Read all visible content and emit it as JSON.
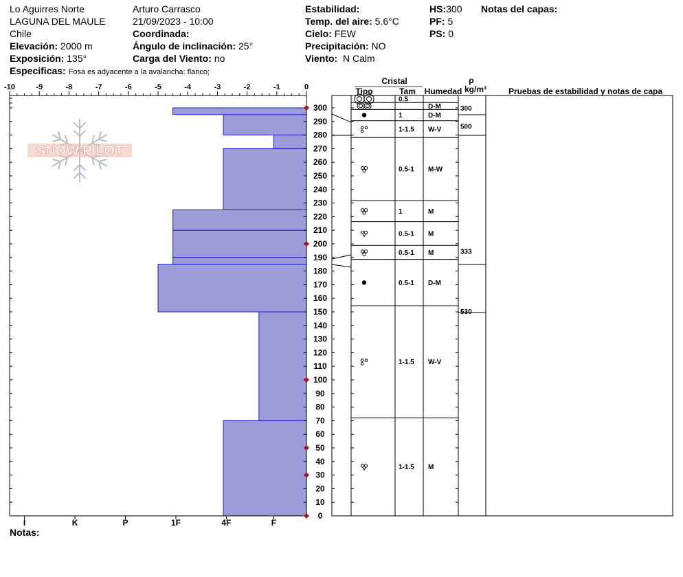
{
  "header": {
    "location": "Lo Aguirres Norte",
    "region": "LAGUNA DEL MAULE",
    "country": "Chile",
    "elevation_label": "Elevación:",
    "elevation_value": "2000 m",
    "aspect_label": "Exposición:",
    "aspect_value": "135°",
    "specifics_label": "Especificas:",
    "specifics_value": "Fosa es adyacente a la avalancha: flanco;",
    "observer": "Arturo Carrasco",
    "datetime": "21/09/2023 - 10:00",
    "coord_label": "Coordinada:",
    "incline_label": "Ángulo de inclinación:",
    "incline_value": "25°",
    "wind_load_label": "Carga del Viento:",
    "wind_load_value": "no",
    "stability_label": "Estabilidad:",
    "air_temp_label": "Temp. del aire:",
    "air_temp_value": "5.6°C",
    "sky_label": "Cielo:",
    "sky_value": "FEW",
    "precip_label": "Precipitación:",
    "precip_value": "NO",
    "wind_label": "Viento:",
    "wind_value": "N Calm",
    "hs_label": "HS:",
    "hs_value": "300",
    "pf_label": "PF:",
    "pf_value": "5",
    "ps_label": "PS:",
    "ps_value": "0",
    "layer_notes_label": "Notas del capas:"
  },
  "watermark": "SNOW PILOT",
  "notes_label": "Notas:",
  "table_headers": {
    "crystal": "Cristal",
    "type": "Tipo",
    "size": "Tam",
    "moisture": "Humedad",
    "rho": "ρ",
    "density_unit": "kg/m³",
    "tests": "Pruebas de estabilidad y notas de capa"
  },
  "chart_data": {
    "type": "bar",
    "top_axis_ticks": [
      "-10",
      "-9",
      "-8",
      "-7",
      "-6",
      "-5",
      "-4",
      "-3",
      "-2",
      "-1",
      "0"
    ],
    "bottom_axis_labels": [
      "I",
      "K",
      "P",
      "1F",
      "4F",
      "F"
    ],
    "height_ticks": [
      "0",
      "10",
      "20",
      "30",
      "40",
      "50",
      "60",
      "70",
      "80",
      "90",
      "100",
      "110",
      "120",
      "130",
      "140",
      "150",
      "160",
      "170",
      "180",
      "190",
      "200",
      "210",
      "220",
      "230",
      "240",
      "250",
      "260",
      "270",
      "280",
      "290",
      "300"
    ],
    "ylim": [
      0,
      300
    ],
    "xlim": [
      -10,
      0
    ],
    "hardness_layers": [
      {
        "bottom": 295,
        "top": 300,
        "value": -4.5
      },
      {
        "bottom": 280,
        "top": 295,
        "value": -2.8
      },
      {
        "bottom": 270,
        "top": 280,
        "value": -1.1
      },
      {
        "bottom": 225,
        "top": 270,
        "value": -2.8
      },
      {
        "bottom": 210,
        "top": 225,
        "value": -4.5
      },
      {
        "bottom": 190,
        "top": 210,
        "value": -4.5
      },
      {
        "bottom": 185,
        "top": 190,
        "value": -4.5
      },
      {
        "bottom": 150,
        "top": 185,
        "value": -5.0
      },
      {
        "bottom": 70,
        "top": 150,
        "value": -1.6
      },
      {
        "bottom": 0,
        "top": 70,
        "value": -2.8
      }
    ],
    "temperature_points_height": [
      300,
      200,
      100,
      50,
      30,
      0
    ]
  },
  "layers": [
    {
      "top": 300,
      "bottom": 295,
      "symbol": "rounded-large",
      "size": "0.5",
      "moisture": "",
      "density": ""
    },
    {
      "top": 295,
      "bottom": 290,
      "symbol": "rounded",
      "size": "",
      "moisture": "D-M",
      "density": "300"
    },
    {
      "top": 290,
      "bottom": 282,
      "symbol": "dot",
      "size": "1",
      "moisture": "D-M",
      "density": ""
    },
    {
      "top": 282,
      "bottom": 270,
      "symbol": "rounded-small",
      "size": "1-1.5",
      "moisture": "W-V",
      "density": "500"
    },
    {
      "top": 270,
      "bottom": 225,
      "symbol": "clustered",
      "size": "0.5-1",
      "moisture": "M-W",
      "density": ""
    },
    {
      "top": 225,
      "bottom": 210,
      "symbol": "clustered",
      "size": "1",
      "moisture": "M",
      "density": ""
    },
    {
      "top": 210,
      "bottom": 193,
      "symbol": "clustered-open",
      "size": "0.5-1",
      "moisture": "M",
      "density": ""
    },
    {
      "top": 193,
      "bottom": 183,
      "symbol": "clustered",
      "size": "0.5-1",
      "moisture": "M",
      "density": "333"
    },
    {
      "top": 183,
      "bottom": 150,
      "symbol": "dot",
      "size": "0.5-1",
      "moisture": "D-M",
      "density": ""
    },
    {
      "top": 150,
      "bottom": 70,
      "symbol": "rounded-small",
      "size": "1-1.5",
      "moisture": "W-V",
      "density": "530"
    },
    {
      "top": 70,
      "bottom": 0,
      "symbol": "clustered-open",
      "size": "1-1.5",
      "moisture": "M",
      "density": ""
    }
  ],
  "colors": {
    "bar_fill": "#9c9cd8",
    "bar_stroke": "#1a1acc",
    "temp_point": "#9b1b1b"
  }
}
